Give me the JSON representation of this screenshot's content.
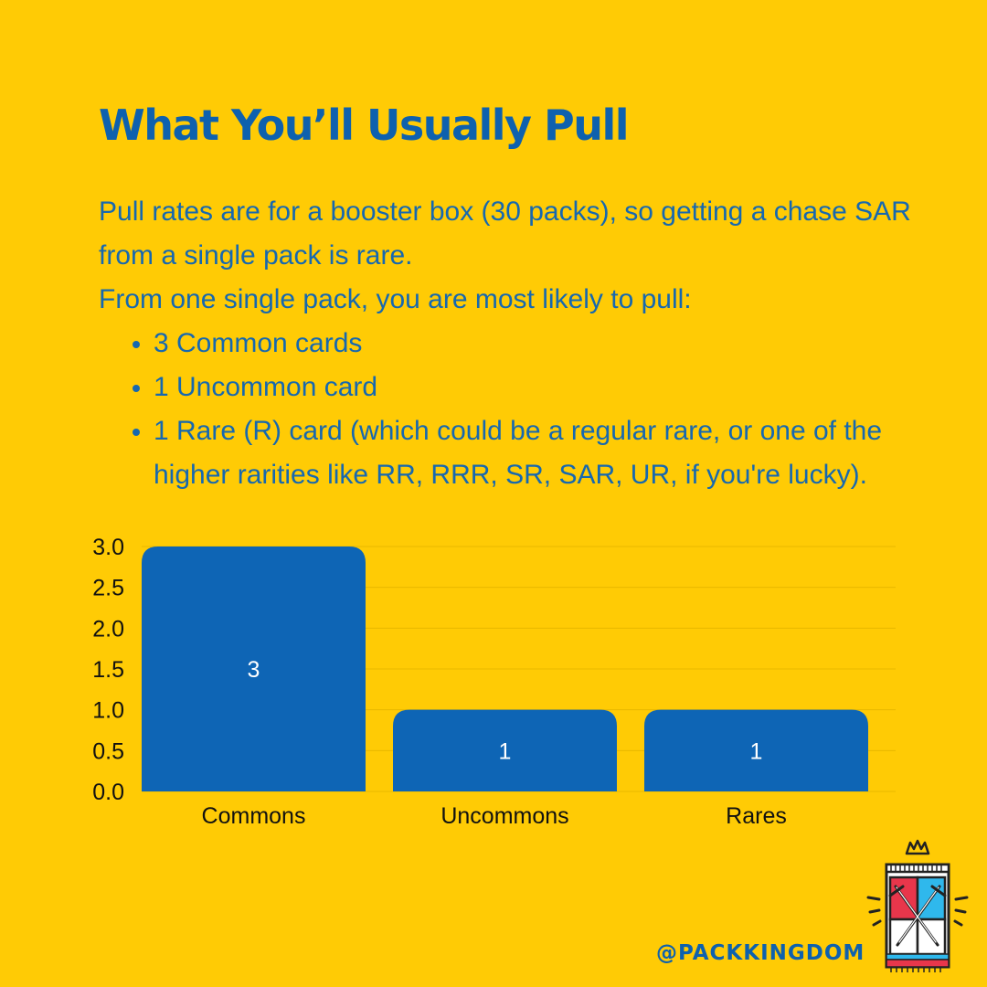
{
  "title": "What You’ll Usually Pull",
  "intro": [
    "Pull rates are for a booster box (30 packs), so getting a chase SAR from a single pack is rare.",
    "From one single pack, you are most likely to pull:"
  ],
  "bullets": [
    "3 Common cards",
    "1 Uncommon card",
    "1 Rare (R) card (which could be a regular rare, or one of the higher rarities like RR, RRR, SR, SAR, UR, if you're lucky)."
  ],
  "chart_data": {
    "type": "bar",
    "categories": [
      "Commons",
      "Uncommons",
      "Rares"
    ],
    "values": [
      3,
      1,
      1
    ],
    "data_labels": [
      "3",
      "1",
      "1"
    ],
    "ylim": [
      0,
      3
    ],
    "yticks": [
      "0.0",
      "0.5",
      "1.0",
      "1.5",
      "2.0",
      "2.5",
      "3.0"
    ],
    "grid": true,
    "bar_color": "#0E65B5",
    "grid_color": "#E8B800"
  },
  "handle": "@PACKKINGDOM",
  "logo": {
    "icon": "pack-kingdom-logo-icon"
  },
  "colors": {
    "background": "#FFCB05",
    "accent": "#0E61AE"
  }
}
